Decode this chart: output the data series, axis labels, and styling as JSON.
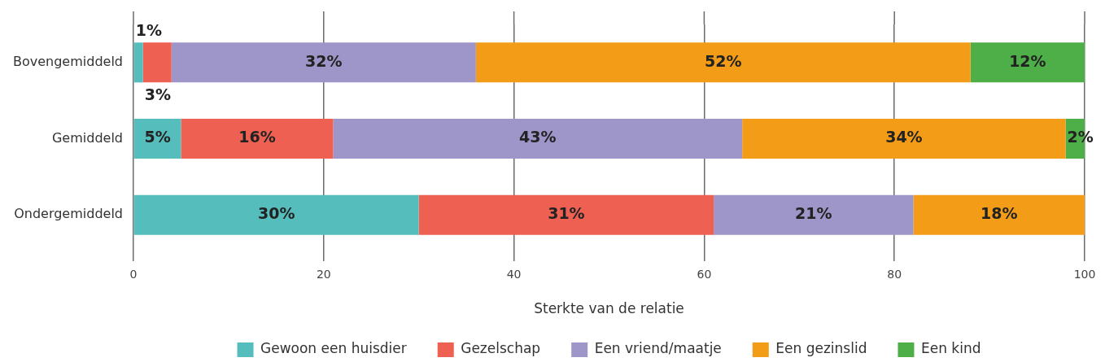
{
  "chart_data": {
    "type": "bar",
    "orientation": "horizontal",
    "stacked": true,
    "categories": [
      "Bovengemiddeld",
      "Gemiddeld",
      "Ondergemiddeld"
    ],
    "series": [
      {
        "name": "Gewoon een huisdier",
        "color": "#56bdbd",
        "values": [
          1,
          5,
          30
        ],
        "value_labels": [
          "1%",
          "5%",
          "30%"
        ]
      },
      {
        "name": "Gezelschap",
        "color": "#ee6152",
        "values": [
          3,
          16,
          31
        ],
        "value_labels": [
          "3%",
          "16%",
          "31%"
        ]
      },
      {
        "name": "Een vriend/maatje",
        "color": "#9e96c8",
        "values": [
          32,
          43,
          21
        ],
        "value_labels": [
          "32%",
          "43%",
          "21%"
        ]
      },
      {
        "name": "Een gezinslid",
        "color": "#f39c18",
        "values": [
          52,
          34,
          18
        ],
        "value_labels": [
          "52%",
          "34%",
          "18%"
        ]
      },
      {
        "name": "Een kind",
        "color": "#4eae48",
        "values": [
          12,
          2,
          null
        ],
        "value_labels": [
          "12%",
          "2%",
          null
        ]
      }
    ],
    "xlabel": "Sterkte van de relatie",
    "xlim": [
      0,
      100
    ],
    "xticks": [
      0,
      20,
      40,
      60,
      80,
      100
    ],
    "grid": "x",
    "legend": "bottom"
  }
}
